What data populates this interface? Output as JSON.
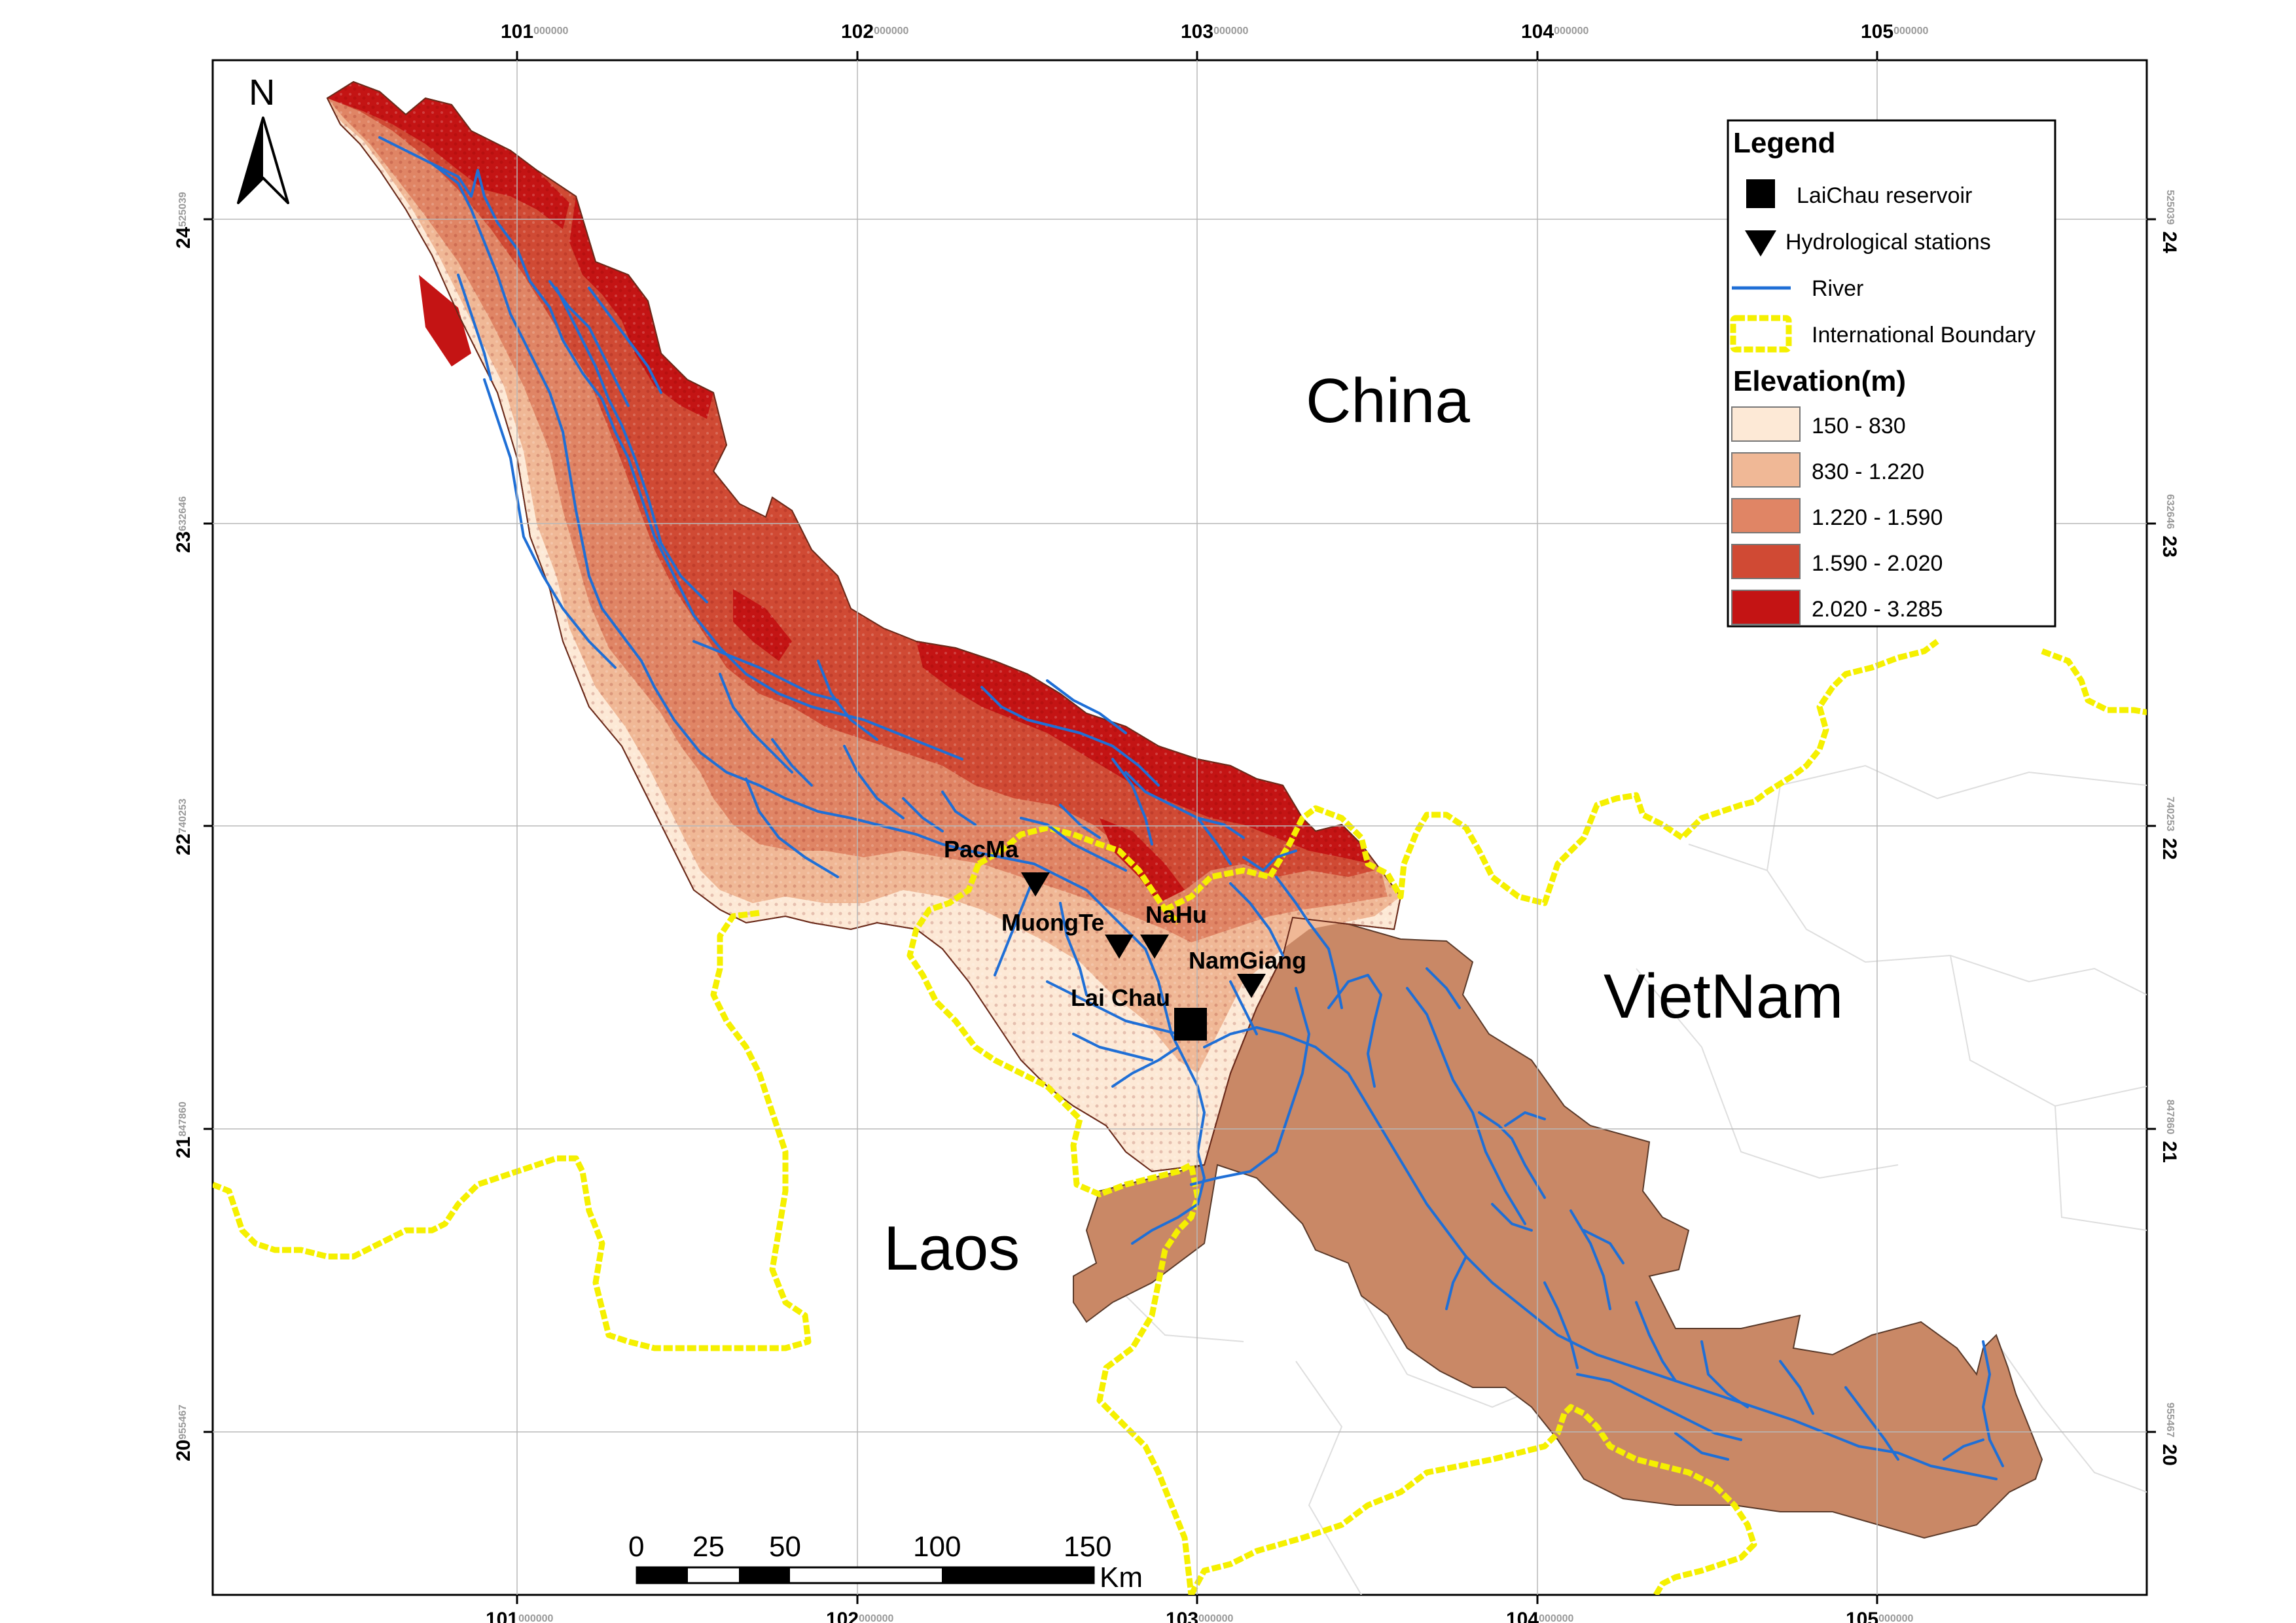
{
  "colors": {
    "elev_150_830": "#fde9d6",
    "elev_830_1220": "#f0b896",
    "elev_1220_1590": "#e08565",
    "elev_1590_2020": "#d04a34",
    "elev_2020_3285": "#c41414",
    "lowland_vietnam": "#c98866",
    "river": "#1f6fd6",
    "boundary": "#f5f000"
  },
  "graticule": {
    "lon_major": [
      "101",
      "102",
      "103",
      "104",
      "105"
    ],
    "lon_minor": [
      "000000",
      "000000",
      "000000",
      "000000",
      "000000"
    ],
    "lat_major": [
      "24",
      "23",
      "22",
      "21",
      "20"
    ],
    "lat_minor": [
      "525039",
      "632646",
      "740253",
      "847860",
      "955467"
    ]
  },
  "countries": {
    "china": "China",
    "vietnam": "VietNam",
    "laos": "Laos"
  },
  "stations": {
    "pacma": "PacMa",
    "muongte": "MuongTe",
    "nahu": "NaHu",
    "namgiang": "NamGiang",
    "laichau": "Lai Chau"
  },
  "north_label": "N",
  "legend": {
    "title": "Legend",
    "reservoir": "LaiChau reservoir",
    "stations": "Hydrological stations",
    "river": "River",
    "boundary": "International Boundary",
    "elevation_title": "Elevation(m)",
    "classes": [
      "150 - 830",
      "830 - 1.220",
      "1.220 - 1.590",
      "1.590 - 2.020",
      "2.020 - 3.285"
    ]
  },
  "scale_bar": {
    "ticks": [
      "0",
      "25",
      "50",
      "100",
      "150"
    ],
    "unit": "Km"
  }
}
